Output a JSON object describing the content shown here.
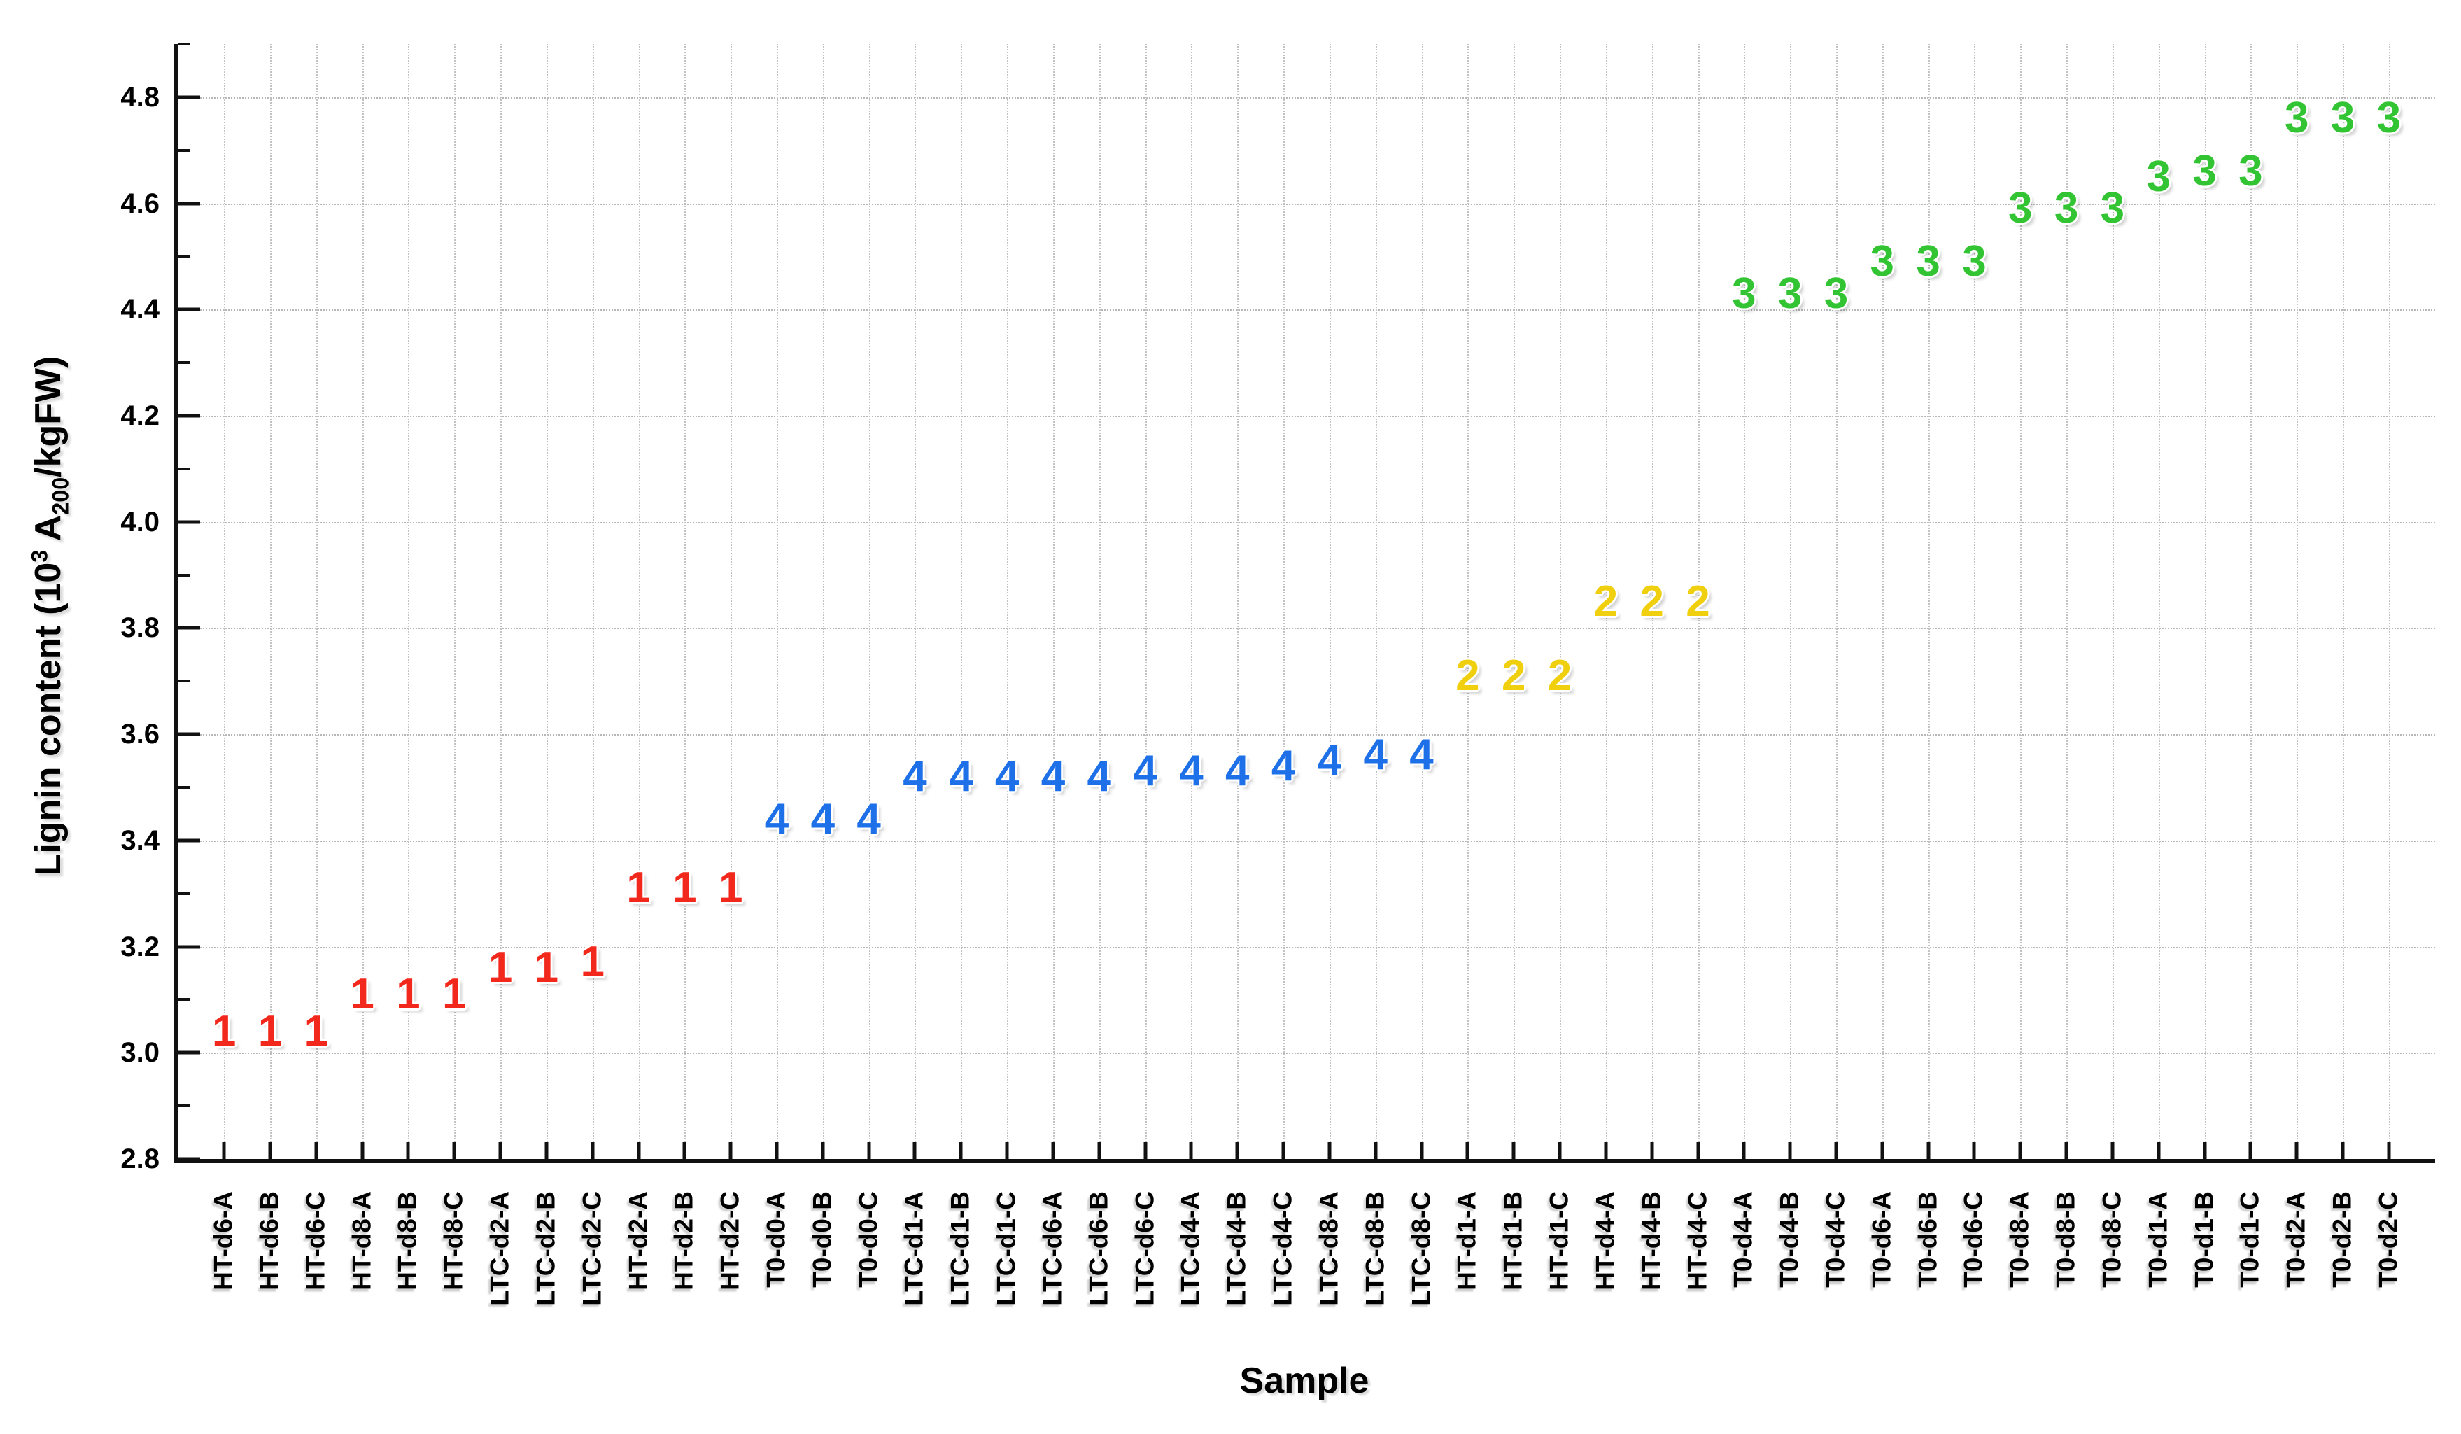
{
  "figure": {
    "xlabel": "Sample",
    "ylabel": {
      "pre": "Lignin content (10",
      "sup": "3",
      "mid": " A",
      "sub": "200",
      "post": "/kgFW)",
      "plain": "Lignin content (10^3 A200/kgFW)"
    }
  },
  "chart_data": {
    "type": "scatter",
    "title": "",
    "xlabel": "Sample",
    "ylabel": "Lignin content (10^3 A200/kgFW)",
    "ylim": [
      2.8,
      4.9
    ],
    "yticks": [
      "2.8",
      "3.0",
      "3.2",
      "3.4",
      "3.6",
      "3.8",
      "4.0",
      "4.2",
      "4.4",
      "4.6",
      "4.8"
    ],
    "yminor_step": 0.1,
    "grid": true,
    "legend": "none",
    "marker_style": "cluster-number-glyphs",
    "cluster_colors": {
      "1": "#F2281C",
      "2": "#F0CF0E",
      "3": "#33C433",
      "4": "#1E70E8"
    },
    "samples": [
      {
        "label": "HT-d6-A",
        "value": 3.04,
        "cluster": "1"
      },
      {
        "label": "HT-d6-B",
        "value": 3.04,
        "cluster": "1"
      },
      {
        "label": "HT-d6-C",
        "value": 3.04,
        "cluster": "1"
      },
      {
        "label": "HT-d8-A",
        "value": 3.11,
        "cluster": "1"
      },
      {
        "label": "HT-d8-B",
        "value": 3.11,
        "cluster": "1"
      },
      {
        "label": "HT-d8-C",
        "value": 3.11,
        "cluster": "1"
      },
      {
        "label": "LTC-d2-A",
        "value": 3.16,
        "cluster": "1"
      },
      {
        "label": "LTC-d2-B",
        "value": 3.16,
        "cluster": "1"
      },
      {
        "label": "LTC-d2-C",
        "value": 3.17,
        "cluster": "1"
      },
      {
        "label": "HT-d2-A",
        "value": 3.31,
        "cluster": "1"
      },
      {
        "label": "HT-d2-B",
        "value": 3.31,
        "cluster": "1"
      },
      {
        "label": "HT-d2-C",
        "value": 3.31,
        "cluster": "1"
      },
      {
        "label": "T0-d0-A",
        "value": 3.44,
        "cluster": "4"
      },
      {
        "label": "T0-d0-B",
        "value": 3.44,
        "cluster": "4"
      },
      {
        "label": "T0-d0-C",
        "value": 3.44,
        "cluster": "4"
      },
      {
        "label": "LTC-d1-A",
        "value": 3.52,
        "cluster": "4"
      },
      {
        "label": "LTC-d1-B",
        "value": 3.52,
        "cluster": "4"
      },
      {
        "label": "LTC-d1-C",
        "value": 3.52,
        "cluster": "4"
      },
      {
        "label": "LTC-d6-A",
        "value": 3.52,
        "cluster": "4"
      },
      {
        "label": "LTC-d6-B",
        "value": 3.52,
        "cluster": "4"
      },
      {
        "label": "LTC-d6-C",
        "value": 3.53,
        "cluster": "4"
      },
      {
        "label": "LTC-d4-A",
        "value": 3.53,
        "cluster": "4"
      },
      {
        "label": "LTC-d4-B",
        "value": 3.53,
        "cluster": "4"
      },
      {
        "label": "LTC-d4-C",
        "value": 3.54,
        "cluster": "4"
      },
      {
        "label": "LTC-d8-A",
        "value": 3.55,
        "cluster": "4"
      },
      {
        "label": "LTC-d8-B",
        "value": 3.56,
        "cluster": "4"
      },
      {
        "label": "LTC-d8-C",
        "value": 3.56,
        "cluster": "4"
      },
      {
        "label": "HT-d1-A",
        "value": 3.71,
        "cluster": "2"
      },
      {
        "label": "HT-d1-B",
        "value": 3.71,
        "cluster": "2"
      },
      {
        "label": "HT-d1-C",
        "value": 3.71,
        "cluster": "2"
      },
      {
        "label": "HT-d4-A",
        "value": 3.85,
        "cluster": "2"
      },
      {
        "label": "HT-d4-B",
        "value": 3.85,
        "cluster": "2"
      },
      {
        "label": "HT-d4-C",
        "value": 3.85,
        "cluster": "2"
      },
      {
        "label": "T0-d4-A",
        "value": 4.43,
        "cluster": "3"
      },
      {
        "label": "T0-d4-B",
        "value": 4.43,
        "cluster": "3"
      },
      {
        "label": "T0-d4-C",
        "value": 4.43,
        "cluster": "3"
      },
      {
        "label": "T0-d6-A",
        "value": 4.49,
        "cluster": "3"
      },
      {
        "label": "T0-d6-B",
        "value": 4.49,
        "cluster": "3"
      },
      {
        "label": "T0-d6-C",
        "value": 4.49,
        "cluster": "3"
      },
      {
        "label": "T0-d8-A",
        "value": 4.59,
        "cluster": "3"
      },
      {
        "label": "T0-d8-B",
        "value": 4.59,
        "cluster": "3"
      },
      {
        "label": "T0-d8-C",
        "value": 4.59,
        "cluster": "3"
      },
      {
        "label": "T0-d1-A",
        "value": 4.65,
        "cluster": "3"
      },
      {
        "label": "T0-d1-B",
        "value": 4.66,
        "cluster": "3"
      },
      {
        "label": "T0-d1-C",
        "value": 4.66,
        "cluster": "3"
      },
      {
        "label": "T0-d2-A",
        "value": 4.76,
        "cluster": "3"
      },
      {
        "label": "T0-d2-B",
        "value": 4.76,
        "cluster": "3"
      },
      {
        "label": "T0-d2-C",
        "value": 4.76,
        "cluster": "3"
      }
    ]
  }
}
